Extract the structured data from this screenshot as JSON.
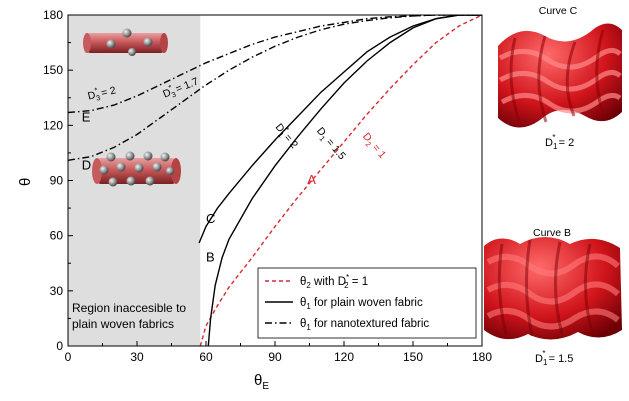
{
  "chart_data": {
    "type": "line",
    "xlabel_main": "θ",
    "xlabel_sub": "E",
    "ylabel": "θ",
    "xlim": [
      0,
      180
    ],
    "ylim": [
      0,
      180
    ],
    "x_ticks": [
      "0",
      "30",
      "60",
      "90",
      "120",
      "150",
      "180"
    ],
    "y_ticks": [
      "0",
      "30",
      "60",
      "90",
      "120",
      "150",
      "180"
    ],
    "shaded_region": {
      "x_range": [
        0,
        57.5
      ],
      "text_line1": "Region inaccesible to",
      "text_line2": "plain woven fabrics"
    },
    "series": [
      {
        "id": "A",
        "style": "dashed",
        "color": "#d9262b",
        "x": [
          57.5,
          60,
          65,
          70,
          80,
          90,
          100,
          110,
          120,
          130,
          140,
          150,
          160,
          170,
          180
        ],
        "y": [
          0,
          11,
          22,
          32,
          48,
          65,
          81,
          96,
          111,
          126,
          140,
          153,
          165,
          174,
          180
        ]
      },
      {
        "id": "B",
        "style": "solid",
        "color": "#000000",
        "x": [
          61,
          62,
          64,
          67,
          70,
          80,
          90,
          100,
          110,
          120,
          130,
          140,
          150,
          160,
          170,
          180
        ],
        "y": [
          0,
          15,
          33,
          48,
          58,
          80,
          98,
          114,
          129,
          143,
          155,
          165,
          173,
          178,
          180,
          180
        ]
      },
      {
        "id": "C",
        "style": "solid",
        "color": "#000000",
        "x": [
          57,
          60,
          65,
          70,
          80,
          90,
          100,
          110,
          120,
          130,
          140,
          150,
          160,
          170,
          180
        ],
        "y": [
          56,
          65,
          75,
          83,
          98,
          112,
          125,
          138,
          149,
          160,
          168,
          174,
          178,
          180,
          180
        ]
      },
      {
        "id": "D",
        "style": "dashdot",
        "color": "#000000",
        "x": [
          0,
          10,
          20,
          30,
          40,
          50,
          60,
          70,
          80,
          90,
          100,
          110,
          120,
          130,
          140,
          150,
          160,
          170,
          180
        ],
        "y": [
          101,
          103,
          108,
          115,
          124,
          133,
          142,
          150,
          157,
          163,
          168,
          172,
          175,
          177,
          178.5,
          179.5,
          180,
          180,
          180
        ]
      },
      {
        "id": "E",
        "style": "dashdot",
        "color": "#000000",
        "x": [
          0,
          10,
          20,
          30,
          40,
          50,
          60,
          70,
          80,
          90,
          100,
          110,
          120,
          130,
          140,
          150,
          160,
          170,
          180
        ],
        "y": [
          127,
          128,
          131,
          136,
          142,
          148,
          154,
          159,
          164,
          168,
          171,
          174,
          176,
          178,
          179,
          179.5,
          180,
          180,
          180
        ]
      }
    ],
    "curve_letters": [
      {
        "text": "A",
        "x": 104,
        "y": 88,
        "color": "#d9262b"
      },
      {
        "text": "B",
        "x": 60,
        "y": 46,
        "color": "#000000"
      },
      {
        "text": "C",
        "x": 60,
        "y": 67,
        "color": "#000000"
      },
      {
        "text": "D",
        "x": 6,
        "y": 96,
        "color": "#000000"
      },
      {
        "text": "E",
        "x": 6,
        "y": 122,
        "color": "#000000"
      }
    ],
    "curve_annotations": [
      {
        "base": "D",
        "sub": "3",
        "sup": "*",
        "value": " = 2",
        "x": 9,
        "y": 134,
        "angle": 13,
        "color": "#000000"
      },
      {
        "base": "D",
        "sub": "3",
        "sup": "*",
        "value": " = 1.7",
        "x": 42,
        "y": 135,
        "angle": 22,
        "color": "#000000"
      },
      {
        "base": "D",
        "sub": "1",
        "sup": "*",
        "value": " = 2",
        "x": 90,
        "y": 119,
        "angle": -50,
        "color": "#000000"
      },
      {
        "base": "D",
        "sub": "1",
        "sup": "",
        "value": " = 1.5",
        "x": 108,
        "y": 117,
        "angle": -50,
        "color": "#000000"
      },
      {
        "base": "D",
        "sub": "2",
        "sup": "",
        "value": " = 1",
        "x": 128,
        "y": 114,
        "angle": -50,
        "color": "#d9262b"
      }
    ],
    "legend": {
      "placement": "bottom-right",
      "entries": [
        {
          "style": "dashed",
          "color": "#d9262b",
          "base": "θ",
          "sub": "2",
          "text": " with D",
          "sup2": "*",
          "sub2": "2",
          "tail": " = 1"
        },
        {
          "style": "solid",
          "color": "#000000",
          "base": "θ",
          "sub": "1",
          "text": " for plain woven fabric"
        },
        {
          "style": "dashdot",
          "color": "#000000",
          "base": "θ",
          "sub": "1",
          "text": " for nanotextured fabric"
        }
      ]
    },
    "side_panels": [
      {
        "title": "Curve C",
        "label_base": "D",
        "label_sub": "1",
        "label_sup": "*",
        "label_value": " = 2"
      },
      {
        "title": "Curve B",
        "label_base": "D",
        "label_sub": "1",
        "label_sup": "*",
        "label_value": " = 1.5"
      }
    ]
  }
}
